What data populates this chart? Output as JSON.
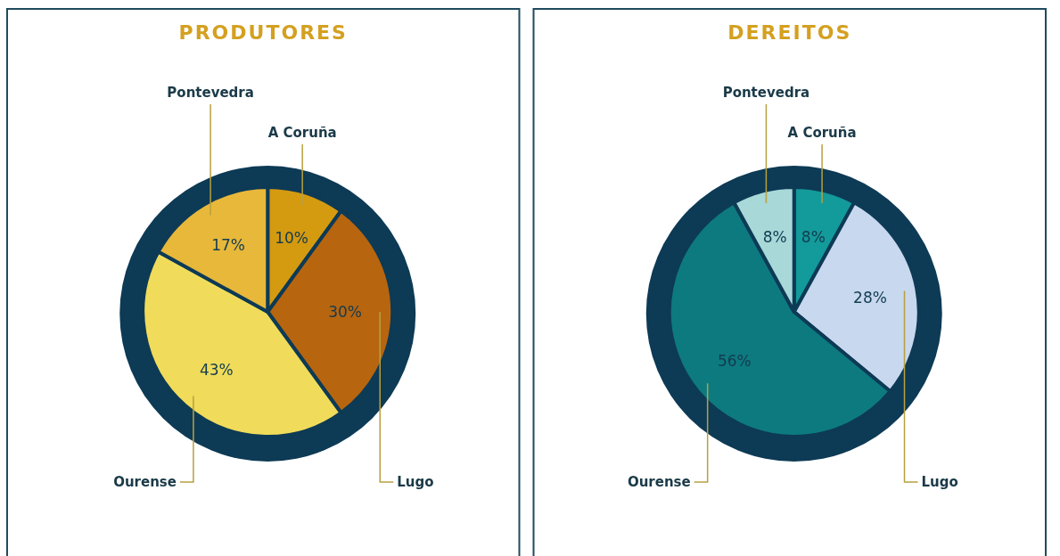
{
  "chart_data": [
    {
      "type": "pie",
      "title": "PRODUTORES",
      "categories": [
        "A Coruña",
        "Lugo",
        "Ourense",
        "Pontevedra"
      ],
      "values": [
        10,
        30,
        43,
        17
      ],
      "value_labels": [
        "10%",
        "30%",
        "43%",
        "17%"
      ],
      "colors": [
        "#d49a10",
        "#b8650f",
        "#f0dc5a",
        "#e8b83a"
      ]
    },
    {
      "type": "pie",
      "title": "DEREITOS",
      "categories": [
        "A Coruña",
        "Lugo",
        "Ourense",
        "Pontevedra"
      ],
      "values": [
        8,
        28,
        56,
        8
      ],
      "value_labels": [
        "8%",
        "28%",
        "56%",
        "8%"
      ],
      "colors": [
        "#139a9a",
        "#c8d8ee",
        "#0d7a80",
        "#a8d8d8"
      ]
    }
  ]
}
